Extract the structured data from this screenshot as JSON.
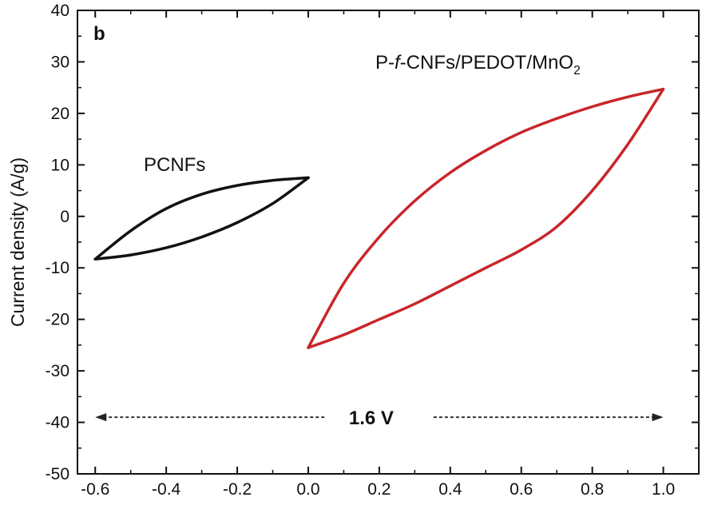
{
  "chart_data": {
    "type": "line",
    "panel_label": "b",
    "xlabel": "",
    "ylabel": "Current density (A/g)",
    "xlim": [
      -0.65,
      1.1
    ],
    "ylim": [
      -50,
      40
    ],
    "x_ticks": [
      -0.6,
      -0.4,
      -0.2,
      0.0,
      0.2,
      0.4,
      0.6,
      0.8,
      1.0
    ],
    "x_tick_labels": [
      "-0.6",
      "-0.4",
      "-0.2",
      "0.0",
      "0.2",
      "0.4",
      "0.6",
      "0.8",
      "1.0"
    ],
    "y_ticks": [
      -50,
      -40,
      -30,
      -20,
      -10,
      0,
      10,
      20,
      30,
      40
    ],
    "y_tick_labels": [
      "-50",
      "-40",
      "-30",
      "-20",
      "-10",
      "0",
      "10",
      "20",
      "30",
      "40"
    ],
    "grid": false,
    "series": [
      {
        "name": "PCNFs",
        "color": "#111111",
        "x": [
          -0.6,
          -0.5,
          -0.4,
          -0.3,
          -0.2,
          -0.1,
          0.0,
          -0.1,
          -0.2,
          -0.3,
          -0.4,
          -0.5,
          -0.6
        ],
        "y": [
          -8.3,
          -2.8,
          1.5,
          4.3,
          6.0,
          7.0,
          7.5,
          2.5,
          -1.2,
          -4.0,
          -6.1,
          -7.5,
          -8.3
        ]
      },
      {
        "name_parts": [
          "P-",
          "f",
          "-CNFs/PEDOT/MnO",
          "2"
        ],
        "color": "#c8262a",
        "x": [
          0.0,
          0.1,
          0.2,
          0.3,
          0.4,
          0.5,
          0.6,
          0.7,
          0.8,
          0.9,
          1.0,
          0.9,
          0.8,
          0.7,
          0.6,
          0.5,
          0.4,
          0.3,
          0.2,
          0.1,
          0.0
        ],
        "y": [
          -25.5,
          -13.0,
          -4.0,
          3.0,
          8.5,
          12.8,
          16.3,
          19.0,
          21.3,
          23.2,
          24.7,
          14.0,
          5.0,
          -2.0,
          -6.5,
          -10.0,
          -13.5,
          -17.0,
          -20.0,
          -23.0,
          -25.5
        ]
      }
    ],
    "annotations": [
      {
        "text": "1.6 V",
        "type": "double-arrow",
        "from_x": -0.6,
        "to_x": 1.0,
        "y": -39
      }
    ]
  }
}
